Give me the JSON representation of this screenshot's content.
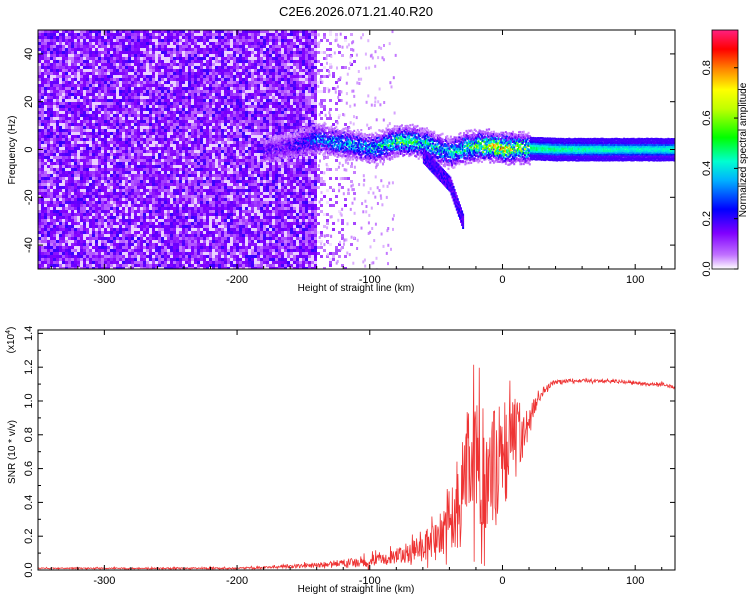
{
  "title": "C2E6.2026.071.21.40.R20",
  "chart_data": [
    {
      "type": "heatmap",
      "name": "spectrogram",
      "xlabel": "Height of straight line (km)",
      "ylabel": "Frequency (Hz)",
      "xlim": [
        -350,
        130
      ],
      "ylim": [
        -50,
        50
      ],
      "x_ticks": [
        -300,
        -200,
        -100,
        0,
        100
      ],
      "x_tick_labels": [
        "-300",
        "-200",
        "-100",
        "0",
        "100"
      ],
      "y_ticks": [
        -40,
        -20,
        0,
        20,
        40
      ],
      "y_tick_labels": [
        "-40",
        "-20",
        "0",
        "20",
        "40"
      ],
      "colorbar": {
        "label": "Normalized spectral amplitude",
        "range": [
          0,
          0.95
        ],
        "ticks": [
          0,
          0.2,
          0.4,
          0.6,
          0.8
        ],
        "tick_labels": [
          "0.0",
          "0.2",
          "0.4",
          "0.6",
          "0.8"
        ],
        "colors": [
          "#ffffff",
          "#a000ff",
          "#0000ff",
          "#00ffff",
          "#00ff00",
          "#ffff00",
          "#ff8000",
          "#ff0000",
          "#ff00a0"
        ]
      },
      "noise_region_x": [
        -350,
        -140
      ],
      "signal_track": {
        "x": [
          -180,
          -160,
          -140,
          -120,
          -100,
          -90,
          -80,
          -70,
          -60,
          -50,
          -40,
          -30,
          -20,
          -10,
          0,
          10,
          20,
          40,
          60,
          80,
          100,
          130
        ],
        "freq": [
          0,
          2,
          5,
          3,
          1,
          2,
          4,
          4,
          3,
          1,
          -1,
          1,
          2,
          2,
          1,
          1,
          1,
          0.5,
          0.5,
          0.5,
          0.5,
          0.5
        ],
        "amplitude": [
          0.15,
          0.18,
          0.3,
          0.35,
          0.35,
          0.4,
          0.45,
          0.45,
          0.42,
          0.4,
          0.38,
          0.45,
          0.5,
          0.6,
          0.65,
          0.55,
          0.5,
          0.48,
          0.47,
          0.46,
          0.45,
          0.45
        ]
      },
      "drift_branch": {
        "x": [
          -60,
          -50,
          -40,
          -35,
          -30
        ],
        "freq": [
          -2,
          -8,
          -14,
          -22,
          -30
        ]
      }
    },
    {
      "type": "line",
      "name": "snr",
      "xlabel": "Height of straight line (km)",
      "ylabel": "SNR (10 * v/v)",
      "scale_label": "(x10",
      "scale_exponent": "4",
      "scale_suffix": ")",
      "xlim": [
        -350,
        130
      ],
      "ylim": [
        0,
        1.42
      ],
      "x_ticks": [
        -300,
        -200,
        -100,
        0,
        100
      ],
      "x_tick_labels": [
        "-300",
        "-200",
        "-100",
        "0",
        "100"
      ],
      "y_ticks": [
        0,
        0.2,
        0.4,
        0.6,
        0.8,
        1.0,
        1.2,
        1.4
      ],
      "y_tick_labels": [
        "0.0",
        "0.2",
        "0.4",
        "0.6",
        "0.8",
        "1.0",
        "1.2",
        "1.4"
      ],
      "series": [
        {
          "name": "SNR",
          "color": "#ee3333",
          "x": [
            -350,
            -300,
            -250,
            -200,
            -160,
            -140,
            -120,
            -100,
            -80,
            -60,
            -50,
            -40,
            -30,
            -25,
            -20,
            -15,
            -10,
            -5,
            0,
            5,
            10,
            15,
            20,
            25,
            30,
            35,
            40,
            50,
            60,
            80,
            100,
            110,
            120,
            130
          ],
          "values": [
            0.01,
            0.01,
            0.01,
            0.01,
            0.02,
            0.03,
            0.04,
            0.05,
            0.08,
            0.13,
            0.2,
            0.32,
            0.45,
            0.6,
            0.55,
            0.58,
            0.65,
            0.62,
            0.68,
            0.72,
            0.78,
            0.82,
            0.88,
            0.98,
            1.05,
            1.09,
            1.11,
            1.12,
            1.12,
            1.12,
            1.11,
            1.1,
            1.1,
            1.08
          ],
          "spread": [
            0.005,
            0.005,
            0.005,
            0.006,
            0.012,
            0.02,
            0.03,
            0.04,
            0.06,
            0.1,
            0.14,
            0.25,
            0.4,
            0.45,
            0.55,
            0.5,
            0.45,
            0.45,
            0.4,
            0.35,
            0.3,
            0.2,
            0.12,
            0.06,
            0.03,
            0.02,
            0.015,
            0.012,
            0.012,
            0.012,
            0.012,
            0.012,
            0.012,
            0.012
          ]
        }
      ]
    }
  ]
}
